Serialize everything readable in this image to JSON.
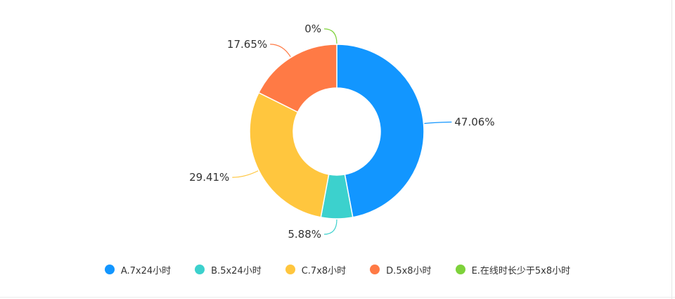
{
  "chart_data": {
    "type": "pie",
    "style": "donut",
    "categories": [
      "A.7x24小时",
      "B.5x24小时",
      "C.7x8小时",
      "D.5x8小时",
      "E.在线时长少于5x8小时"
    ],
    "values": [
      47.06,
      5.88,
      29.41,
      17.65,
      0
    ],
    "labels": [
      "47.06%",
      "5.88%",
      "29.41%",
      "17.65%",
      "0%"
    ],
    "colors": [
      "#1296ff",
      "#3cd1cd",
      "#ffc63e",
      "#ff7a45",
      "#7ed23b"
    ],
    "legend_position": "bottom",
    "start": "top, clockwise"
  }
}
